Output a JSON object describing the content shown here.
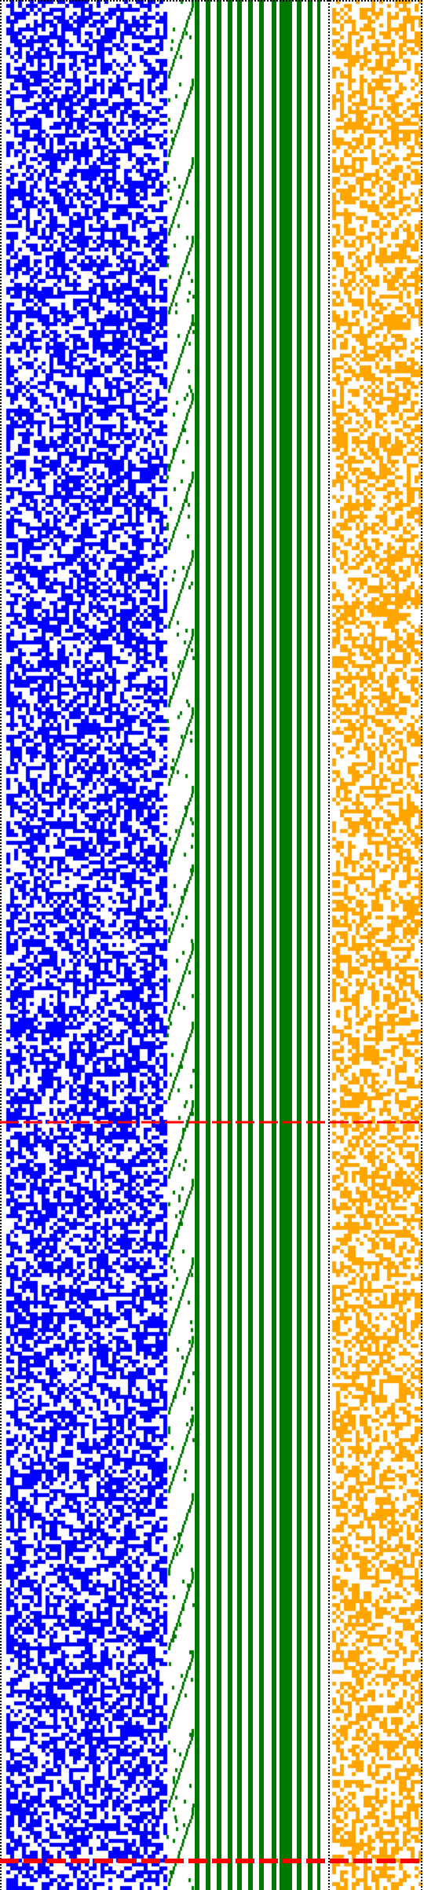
{
  "figure": {
    "description_free": true,
    "colors": {
      "background": "#ffffff",
      "left_blocks": "#0000ff",
      "staircase": "#007700",
      "right_blocks": "#ffa500",
      "separator": "#000000",
      "highlight_rows": "#ff0000"
    },
    "regions": [
      {
        "name": "left-random-pattern",
        "color_key": "left_blocks",
        "fill_probability": 0.55
      },
      {
        "name": "staircase-pattern",
        "color_key": "staircase"
      },
      {
        "name": "vertical-bars",
        "color_key": "staircase"
      },
      {
        "name": "right-random-pattern",
        "color_key": "right_blocks",
        "fill_probability": 0.55
      }
    ],
    "dotted_separators": 3,
    "highlight_rows": 2
  }
}
